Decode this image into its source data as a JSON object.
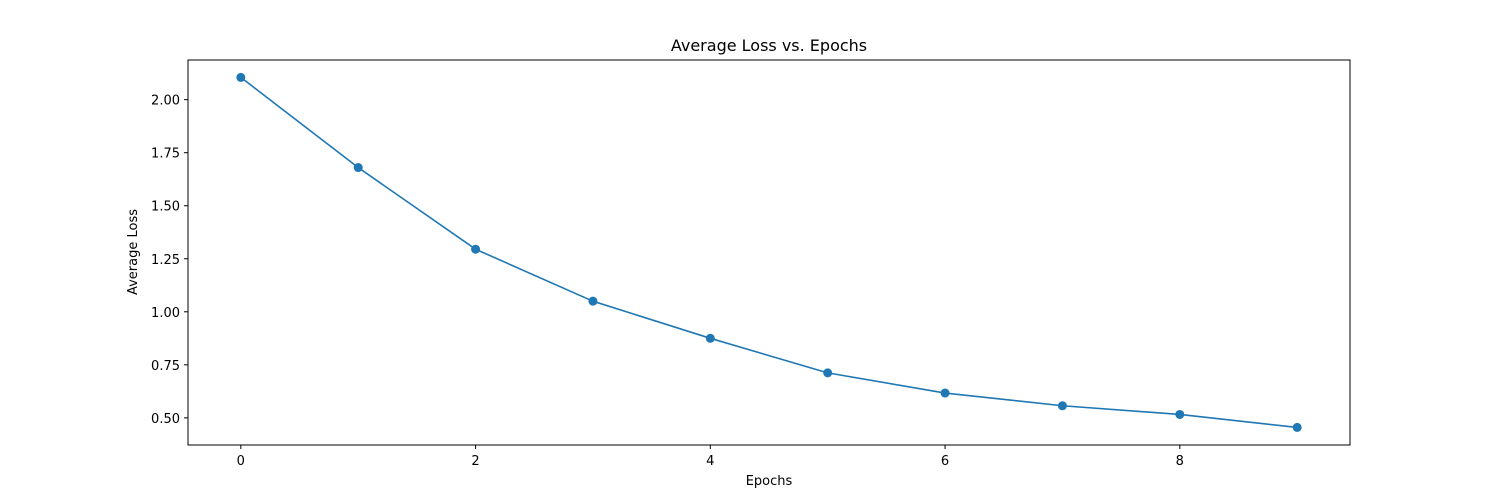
{
  "chart_data": {
    "type": "line",
    "title": "Average Loss vs. Epochs",
    "xlabel": "Epochs",
    "ylabel": "Average Loss",
    "x": [
      0,
      1,
      2,
      3,
      4,
      5,
      6,
      7,
      8,
      9
    ],
    "series": [
      {
        "values": [
          2.105,
          1.68,
          1.295,
          1.05,
          0.875,
          0.712,
          0.617,
          0.557,
          0.516,
          0.455
        ],
        "marker": "circle",
        "color": "#1f77b4"
      }
    ],
    "xlim": [
      -0.45,
      9.45
    ],
    "ylim": [
      0.372,
      2.187
    ],
    "xticks": [
      0,
      2,
      4,
      6,
      8
    ],
    "xtick_labels": [
      "0",
      "2",
      "4",
      "6",
      "8"
    ],
    "yticks": [
      0.5,
      0.75,
      1.0,
      1.25,
      1.5,
      1.75,
      2.0
    ],
    "ytick_labels": [
      "0.50",
      "0.75",
      "1.00",
      "1.25",
      "1.50",
      "1.75",
      "2.00"
    ],
    "grid": false,
    "legend": "none"
  }
}
